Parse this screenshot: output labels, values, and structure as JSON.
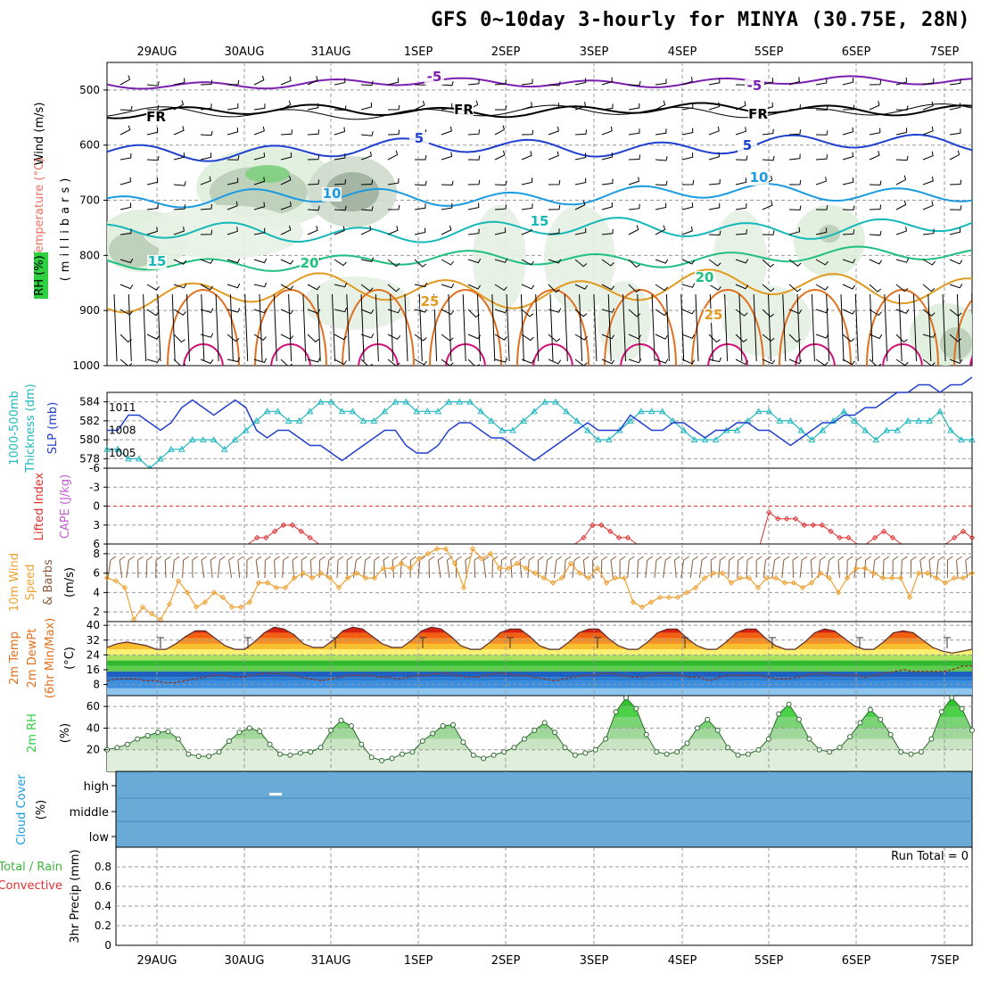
{
  "title": "GFS 0~10day 3-hourly for MINYA (30.75E, 28N)",
  "dates": [
    "29AUG",
    "30AUG",
    "31AUG",
    "1SEP",
    "2SEP",
    "3SEP",
    "4SEP",
    "5SEP",
    "6SEP",
    "7SEP"
  ],
  "colors": {
    "purple": "#7b1fb0",
    "blue": "#1f3fd0",
    "skyblue": "#1a9ae0",
    "teal": "#16b8b8",
    "green": "#1fc080",
    "orange": "#e09a20",
    "darkorange": "#e07020",
    "magenta": "#d0107a",
    "cyan": "#20b8c0",
    "cloud": "#6aaad6",
    "rh_green": "#2fd040",
    "precip_green": "#3ab83a",
    "red": "#e03030",
    "wind_orange": "#f0a030",
    "wind_brown": "#8a5a3a"
  },
  "panels": {
    "upper": {
      "label_wind": "Wind (m/s)",
      "label_temp": "Temperature (°C)",
      "label_rh": "RH (%)",
      "label_mb": "(millibars)",
      "yticks": [
        "500",
        "600",
        "700",
        "800",
        "900",
        "1000"
      ],
      "contour_labels": {
        "m5": "-5",
        "fr": "FR",
        "p5": "5",
        "p10": "10",
        "p15": "15",
        "p20": "20",
        "p25": "25"
      }
    },
    "slp": {
      "label1": "1000-500mb",
      "label2": "Thickness (dm)",
      "label3": "SLP (mb)",
      "left_ticks": [
        "584",
        "582",
        "580",
        "578"
      ],
      "right_ticks": [
        "1011",
        "1008",
        "1005"
      ]
    },
    "cape": {
      "label1": "Lifted Index",
      "label2": "CAPE (J/kg)",
      "ticks": [
        "-6",
        "-3",
        "0",
        "3",
        "6"
      ]
    },
    "wind10": {
      "label1": "10m Wind",
      "label2": "Speed",
      "label3": "& Barbs",
      "label4": "(m/s)",
      "ticks": [
        "8",
        "6",
        "4",
        "2"
      ]
    },
    "temp2m": {
      "label1": "2m Temp",
      "label2": "2m DewPt",
      "label3": "(6hr Min/Max)",
      "label4": "(°C)",
      "ticks": [
        "40",
        "32",
        "24",
        "16",
        "8"
      ]
    },
    "rh2m": {
      "label1": "2m RH",
      "label2": "(%)",
      "ticks": [
        "60",
        "40",
        "20"
      ]
    },
    "cloud": {
      "label1": "Cloud Cover",
      "label2": "(%)",
      "ticks": [
        "high",
        "middle",
        "low"
      ]
    },
    "precip": {
      "label1": "Total / Rain",
      "label2": "Convective",
      "label3": "3hr Precip (mm)",
      "ticks": [
        "0.8",
        "0.6",
        "0.4",
        "0.2",
        "0"
      ],
      "run_total": "Run Total = 0"
    }
  },
  "chart_data": [
    {
      "type": "line",
      "name": "upper-air",
      "isotherm_levels_mb": {
        "-5": 490,
        "FR": 540,
        "5": 612,
        "10": 700,
        "15": 762,
        "20": 815,
        "25": 870
      },
      "ylim": [
        450,
        1000
      ]
    },
    {
      "type": "line",
      "name": "slp-thickness",
      "series": [
        {
          "name": "SLP (mb)",
          "values": [
            1008,
            1008,
            1010,
            1010,
            1009,
            1008,
            1009,
            1011,
            1012,
            1011,
            1010,
            1011,
            1012,
            1011,
            1008,
            1007,
            1008,
            1008,
            1007,
            1006,
            1006,
            1005,
            1004,
            1005,
            1006,
            1007,
            1008,
            1008,
            1006,
            1005,
            1005,
            1006,
            1008,
            1009,
            1009,
            1008,
            1007,
            1007,
            1006,
            1005,
            1004,
            1005,
            1006,
            1007,
            1008,
            1009,
            1008,
            1008,
            1008,
            1010,
            1009,
            1008,
            1008,
            1009,
            1009,
            1008,
            1007,
            1008,
            1008,
            1009,
            1009,
            1008,
            1008,
            1007,
            1006,
            1007,
            1008,
            1009,
            1009,
            1010,
            1010,
            1011,
            1011,
            1012,
            1013,
            1013,
            1014,
            1014,
            1013,
            1014,
            1014,
            1015
          ]
        },
        {
          "name": "1000-500mb Thickness (dm)",
          "values": [
            579,
            579,
            578,
            578,
            577,
            578,
            579,
            579,
            580,
            580,
            580,
            579,
            580,
            581,
            582,
            583,
            583,
            582,
            582,
            583,
            584,
            584,
            583,
            583,
            582,
            582,
            583,
            584,
            584,
            583,
            583,
            583,
            584,
            584,
            584,
            583,
            582,
            581,
            581,
            582,
            583,
            584,
            584,
            583,
            582,
            581,
            580,
            580,
            581,
            582,
            583,
            583,
            583,
            582,
            581,
            580,
            580,
            580,
            581,
            581,
            582,
            583,
            583,
            582,
            582,
            581,
            580,
            581,
            582,
            583,
            582,
            581,
            580,
            581,
            581,
            582,
            582,
            582,
            583,
            581,
            580,
            580
          ]
        }
      ],
      "ylim_slp": [
        1003,
        1013
      ],
      "ylim_thickness": [
        577,
        585
      ]
    },
    {
      "type": "line",
      "name": "lifted-index",
      "series": [
        {
          "name": "Lifted Index",
          "values": [
            6,
            6,
            6,
            6,
            6,
            6,
            6,
            6,
            6,
            6,
            6,
            6,
            6,
            6,
            6,
            6,
            6,
            5,
            5,
            4,
            3,
            3,
            4,
            5,
            6,
            6,
            6,
            6,
            6,
            6,
            6,
            6,
            6,
            6,
            6,
            6,
            6,
            6,
            6,
            6,
            6,
            6,
            6,
            6,
            6,
            6,
            6,
            6,
            6,
            6,
            6,
            6,
            6,
            6,
            5,
            3,
            3,
            4,
            5,
            5,
            6,
            6,
            6,
            6,
            6,
            6,
            6,
            6,
            6,
            6,
            6,
            6,
            6,
            6,
            6,
            1,
            2,
            2,
            2,
            3,
            3,
            3,
            4,
            5,
            5,
            6,
            6,
            5,
            4,
            5,
            6,
            6,
            6,
            6,
            6,
            6,
            5,
            4,
            5
          ]
        }
      ],
      "ylim": [
        -6,
        6
      ],
      "zero_line": 0
    },
    {
      "type": "line",
      "name": "10m-wind",
      "series": [
        {
          "name": "10m Wind Speed",
          "values": [
            5.5,
            5.2,
            4.5,
            1.2,
            2.5,
            1.8,
            1.2,
            2.8,
            5.2,
            4.0,
            2.5,
            3.0,
            4.0,
            3.5,
            2.5,
            2.5,
            3.0,
            5.0,
            5.0,
            4.5,
            4.5,
            5.5,
            6.0,
            5.5,
            6.0,
            5.5,
            4.5,
            5.5,
            6.0,
            5.5,
            5.5,
            6.5,
            6.5,
            7.0,
            6.5,
            7.5,
            8.0,
            8.5,
            8.5,
            7.0,
            4.5,
            8.5,
            7.5,
            8.0,
            6.5,
            6.5,
            7.0,
            6.5,
            6.0,
            5.5,
            5.0,
            5.5,
            7.0,
            6.0,
            5.5,
            6.5,
            5.0,
            5.5,
            5.5,
            3.0,
            2.5,
            3.0,
            3.5,
            3.5,
            3.5,
            4.0,
            4.5,
            5.5,
            6.0,
            6.0,
            5.0,
            5.5,
            5.5,
            4.5,
            5.5,
            5.5,
            5.0,
            5.0,
            4.5,
            5.0,
            6.0,
            5.5,
            4.0,
            5.5,
            6.5,
            6.5,
            6.0,
            5.5,
            5.5,
            5.5,
            3.5,
            6.0,
            6.0,
            5.5,
            5.0,
            5.5,
            5.5,
            6.0
          ]
        }
      ],
      "ylim": [
        1,
        9
      ]
    },
    {
      "type": "area",
      "name": "2m-temp-dewpoint",
      "series": [
        {
          "name": "2m Temp",
          "values": [
            28,
            30,
            31,
            30,
            29,
            27,
            27,
            30,
            34,
            37,
            37,
            33,
            29,
            27,
            27,
            31,
            36,
            39,
            38,
            35,
            30,
            28,
            28,
            32,
            37,
            39,
            38,
            34,
            30,
            28,
            28,
            32,
            37,
            39,
            38,
            34,
            29,
            27,
            27,
            31,
            36,
            38,
            38,
            34,
            29,
            27,
            27,
            31,
            36,
            38,
            38,
            33,
            29,
            27,
            27,
            31,
            36,
            38,
            38,
            33,
            29,
            27,
            27,
            31,
            36,
            38,
            38,
            33,
            29,
            27,
            27,
            31,
            36,
            38,
            37,
            33,
            29,
            27,
            27,
            31,
            36,
            37,
            36,
            32,
            28,
            26,
            25,
            26,
            27
          ]
        },
        {
          "name": "2m DewPt",
          "values": [
            10,
            11,
            11,
            11,
            10,
            10,
            9,
            9,
            10,
            11,
            12,
            13,
            13,
            12,
            12,
            13,
            14,
            14,
            14,
            13,
            12,
            11,
            10,
            11,
            12,
            13,
            13,
            13,
            12,
            12,
            11,
            12,
            13,
            13,
            14,
            14,
            13,
            12,
            12,
            13,
            14,
            14,
            13,
            13,
            12,
            11,
            10,
            11,
            12,
            13,
            13,
            14,
            14,
            13,
            12,
            12,
            13,
            14,
            14,
            13,
            12,
            12,
            10,
            12,
            13,
            13,
            13,
            13,
            12,
            11,
            11,
            12,
            13,
            14,
            14,
            13,
            13,
            13,
            12,
            13,
            14,
            15,
            16,
            15,
            15,
            15,
            15,
            16,
            18,
            18
          ]
        }
      ],
      "ylim": [
        2,
        42
      ]
    },
    {
      "type": "area",
      "name": "2m-rh",
      "series": [
        {
          "name": "2m RH",
          "values": [
            20,
            22,
            25,
            30,
            33,
            36,
            37,
            30,
            16,
            14,
            14,
            18,
            28,
            36,
            40,
            37,
            25,
            16,
            15,
            17,
            18,
            22,
            38,
            47,
            42,
            25,
            13,
            10,
            12,
            16,
            18,
            28,
            35,
            42,
            43,
            27,
            15,
            12,
            15,
            18,
            22,
            30,
            38,
            45,
            36,
            22,
            15,
            17,
            20,
            30,
            55,
            68,
            58,
            34,
            18,
            16,
            18,
            26,
            40,
            48,
            38,
            22,
            15,
            16,
            20,
            30,
            53,
            62,
            48,
            30,
            20,
            18,
            22,
            32,
            45,
            57,
            48,
            34,
            18,
            16,
            18,
            30,
            55,
            68,
            58,
            38
          ]
        }
      ],
      "ylim": [
        0,
        70
      ]
    },
    {
      "type": "area",
      "name": "cloud-cover",
      "series": [
        {
          "name": "high",
          "values": [
            0
          ]
        },
        {
          "name": "middle",
          "values": [
            0
          ]
        },
        {
          "name": "low",
          "values": [
            0
          ]
        }
      ]
    },
    {
      "type": "bar",
      "name": "3hr-precip",
      "series": [
        {
          "name": "Total / Rain",
          "values": [
            0
          ]
        },
        {
          "name": "Convective",
          "values": [
            0
          ]
        }
      ],
      "ylim": [
        0,
        1
      ]
    }
  ]
}
